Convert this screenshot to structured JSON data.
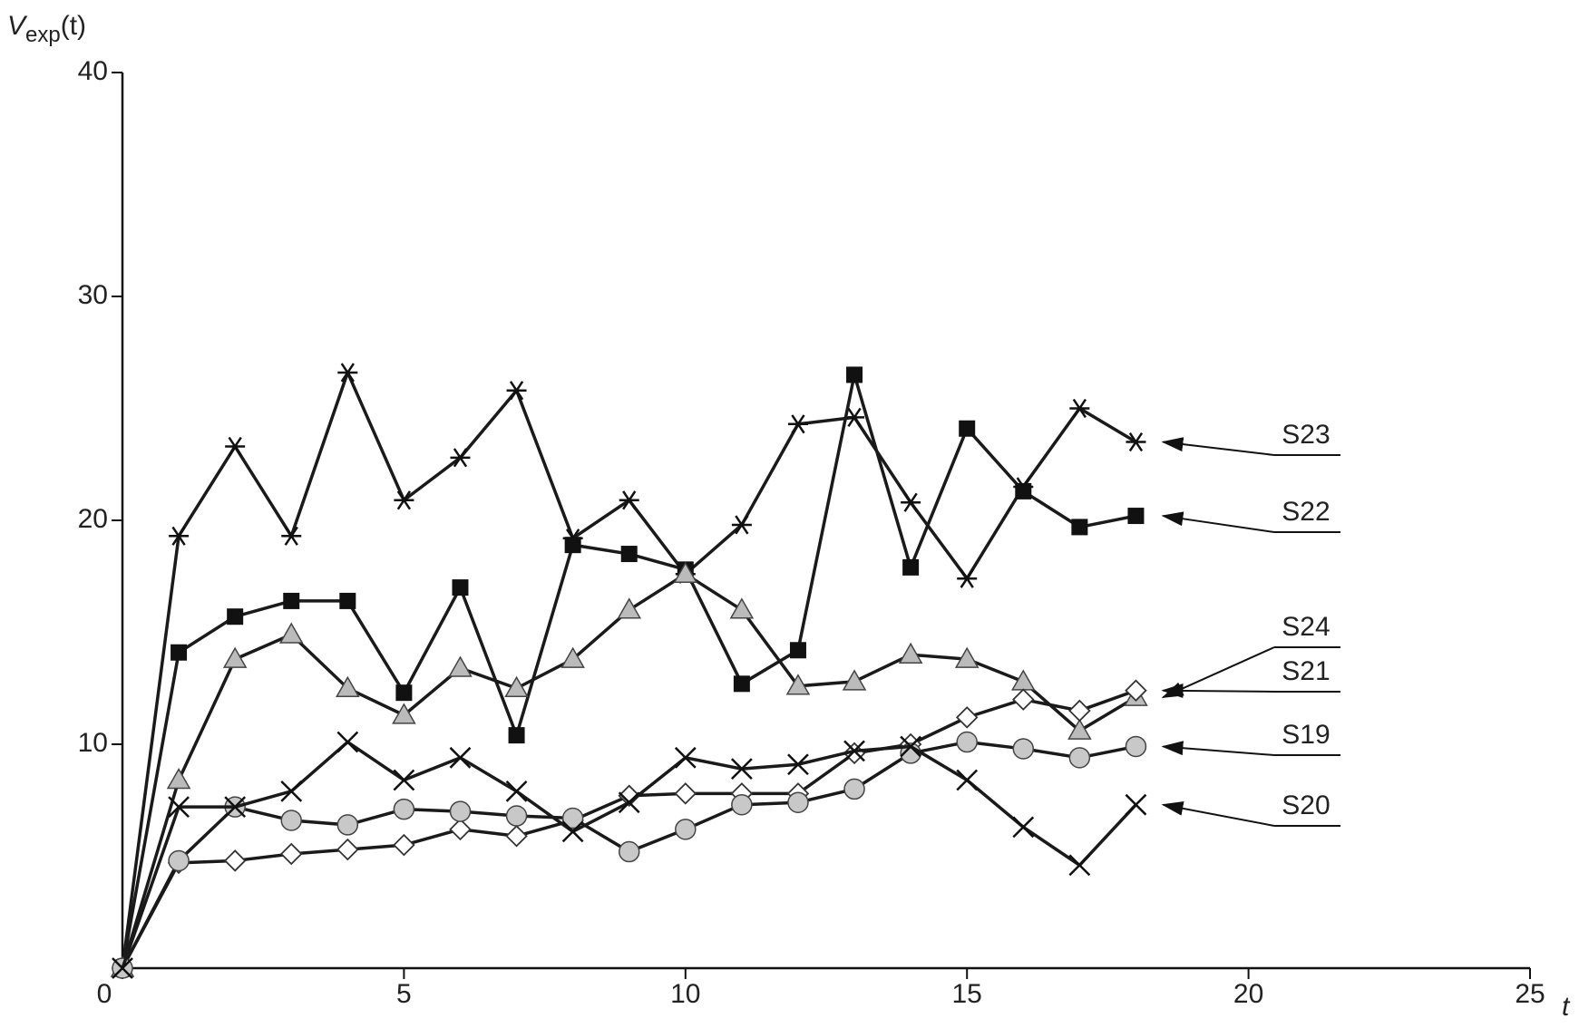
{
  "chart_data": {
    "type": "line",
    "ylabel": "V",
    "ylabel_subscript": "exp",
    "ylabel_suffix": "(t)",
    "xlabel": "t",
    "x": [
      0,
      1,
      2,
      3,
      4,
      5,
      6,
      7,
      8,
      9,
      10,
      11,
      12,
      13,
      14,
      15,
      16,
      17,
      18
    ],
    "xlim": [
      0,
      25
    ],
    "xticks": [
      0,
      5,
      10,
      15,
      20,
      25
    ],
    "ylim": [
      0,
      40
    ],
    "yticks": [
      10,
      20,
      30,
      40
    ],
    "series": [
      {
        "name": "S23",
        "color": "#1a1a1a",
        "marker": "star",
        "values": [
          0,
          19.3,
          23.3,
          19.3,
          26.6,
          20.9,
          22.8,
          25.8,
          19.2,
          20.9,
          17.6,
          19.8,
          24.3,
          24.6,
          20.8,
          17.4,
          21.5,
          25.0,
          23.5
        ]
      },
      {
        "name": "S22",
        "color": "#1a1a1a",
        "marker": "square",
        "values": [
          0,
          14.1,
          15.7,
          16.4,
          16.4,
          12.3,
          17.0,
          10.4,
          18.9,
          18.5,
          17.8,
          12.7,
          14.2,
          26.5,
          17.9,
          24.1,
          21.3,
          19.7,
          20.2
        ]
      },
      {
        "name": "S24",
        "color": "#1a1a1a",
        "marker": "triangle",
        "values": [
          0,
          8.4,
          13.8,
          14.9,
          12.5,
          11.3,
          13.4,
          12.5,
          13.8,
          16.0,
          17.6,
          16.0,
          12.6,
          12.8,
          14.0,
          13.8,
          12.8,
          10.6,
          12.1
        ]
      },
      {
        "name": "S21",
        "color": "#1a1a1a",
        "marker": "diamond",
        "values": [
          0,
          4.7,
          4.8,
          5.1,
          5.3,
          5.5,
          6.2,
          5.9,
          6.6,
          7.7,
          7.8,
          7.8,
          7.8,
          9.6,
          10.0,
          11.2,
          12.0,
          11.5,
          12.4
        ]
      },
      {
        "name": "S19",
        "color": "#1a1a1a",
        "marker": "circle",
        "values": [
          0,
          4.8,
          7.2,
          6.6,
          6.4,
          7.1,
          7.0,
          6.8,
          6.7,
          5.2,
          6.2,
          7.3,
          7.4,
          8.0,
          9.6,
          10.1,
          9.8,
          9.4,
          9.9
        ]
      },
      {
        "name": "S20",
        "color": "#1a1a1a",
        "marker": "cross",
        "values": [
          0,
          7.2,
          7.2,
          7.9,
          10.1,
          8.4,
          9.4,
          7.9,
          6.1,
          7.4,
          9.4,
          8.9,
          9.1,
          9.7,
          9.9,
          8.4,
          6.3,
          4.6,
          7.3
        ]
      }
    ]
  }
}
